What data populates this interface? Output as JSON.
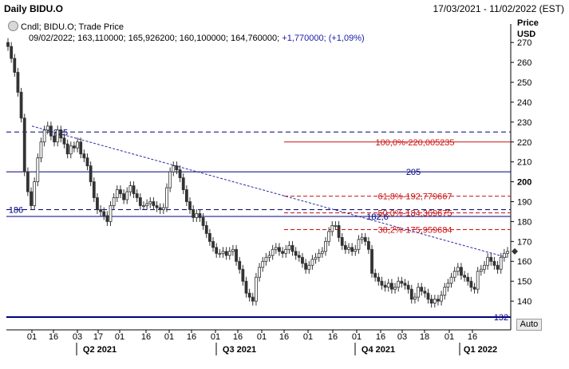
{
  "header": {
    "title": "Daily BIDU.O",
    "date_range": "17/03/2021 - 11/02/2022 (EST)"
  },
  "legend": {
    "line1": "Cndl; BIDU.O; Trade Price",
    "line2_values": "09/02/2022; 163,110000; 165,926200; 160,100000; 164,760000;",
    "change": "+1,770000;",
    "change_pct": "(+1,09%)"
  },
  "auto_button": "Auto",
  "colors": {
    "candle": "#333333",
    "navy": "#00007f",
    "fib_red": "#cc1111",
    "trend": "#2a2aa8"
  },
  "chart_data": {
    "type": "candlestick",
    "y_axis": {
      "label_top": "Price",
      "label_unit": "USD",
      "range": [
        130,
        278
      ],
      "side": "right",
      "ticks": [
        "140",
        "150",
        "160",
        "170",
        "180",
        "190",
        "200",
        "210",
        "220",
        "230",
        "240",
        "250",
        "260",
        "270"
      ]
    },
    "x_axis": {
      "day_ticks": [
        "01",
        "16",
        "03",
        "17",
        "01",
        "16",
        "01",
        "16",
        "01",
        "16",
        "01",
        "16",
        "01",
        "16",
        "01",
        "16",
        "03",
        "18",
        "01",
        "16"
      ],
      "period_labels": [
        "Q2 2021",
        "Q3 2021",
        "Q4 2021",
        "Q1 2022"
      ]
    },
    "grid": false,
    "horizontal_levels": [
      {
        "value": 225,
        "label": "225",
        "style": "dashed"
      },
      {
        "value": 205,
        "label": "205",
        "style": "solid"
      },
      {
        "value": 186,
        "label": "186",
        "style": "dashed"
      },
      {
        "value": 182.6,
        "label": "182,6",
        "style": "solid"
      },
      {
        "value": 132,
        "label": "132",
        "style": "solid-thick"
      }
    ],
    "fibonacci": [
      {
        "level": "100,0%",
        "value": "220,005235"
      },
      {
        "level": "61,8%",
        "value": "192,779667"
      },
      {
        "level": "50,0%",
        "value": "184,369675"
      },
      {
        "level": "38,2%",
        "value": "175,959684"
      }
    ],
    "trendline": {
      "start": [
        "17/03/2021",
        228
      ],
      "end": [
        "11/02/2022",
        162
      ]
    },
    "close_series": [
      268,
      262,
      255,
      245,
      232,
      205,
      195,
      188,
      200,
      212,
      220,
      226,
      228,
      223,
      220,
      226,
      222,
      219,
      214,
      218,
      217,
      220,
      214,
      212,
      208,
      200,
      192,
      186,
      185,
      183,
      180,
      188,
      192,
      196,
      194,
      191,
      195,
      198,
      194,
      192,
      188,
      188,
      189,
      190,
      188,
      187,
      186,
      187,
      197,
      205,
      208,
      206,
      202,
      196,
      190,
      186,
      182,
      184,
      182,
      178,
      174,
      170,
      167,
      164,
      164,
      165,
      163,
      165,
      166,
      160,
      156,
      150,
      144,
      142,
      140,
      152,
      157,
      160,
      162,
      163,
      166,
      167,
      165,
      164,
      166,
      168,
      165,
      163,
      162,
      159,
      156,
      158,
      161,
      162,
      164,
      165,
      170,
      175,
      178,
      178,
      172,
      168,
      166,
      167,
      165,
      166,
      171,
      172,
      170,
      166,
      154,
      152,
      150,
      148,
      147,
      149,
      146,
      147,
      150,
      149,
      148,
      146,
      141,
      142,
      147,
      145,
      144,
      141,
      139,
      141,
      140,
      143,
      147,
      149,
      152,
      155,
      157,
      153,
      152,
      150,
      147,
      146,
      155,
      156,
      158,
      162,
      160,
      158,
      156,
      162,
      164,
      165
    ]
  }
}
